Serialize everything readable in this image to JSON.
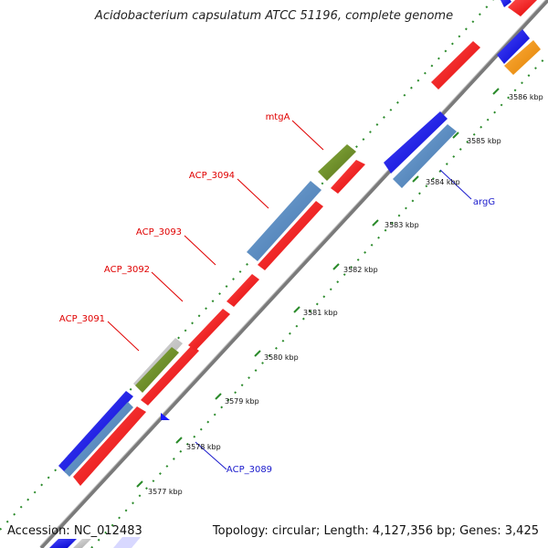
{
  "title": "Acidobacterium capsulatum ATCC 51196, complete genome",
  "footer": {
    "accession": "Accession: NC_012483",
    "summary": "Topology: circular; Length: 4,127,356 bp; Genes: 3,425"
  },
  "ticks": [
    "3577 kbp",
    "3578 kbp",
    "3579 kbp",
    "3580 kbp",
    "3581 kbp",
    "3582 kbp",
    "3583 kbp",
    "3584 kbp",
    "3585 kbp",
    "3586 kbp"
  ],
  "gene_labels": [
    {
      "name": "mtgA",
      "color": "#e00000"
    },
    {
      "name": "ACP_3094",
      "color": "#e00000"
    },
    {
      "name": "ACP_3093",
      "color": "#e00000"
    },
    {
      "name": "ACP_3092",
      "color": "#e00000"
    },
    {
      "name": "ACP_3091",
      "color": "#e00000"
    },
    {
      "name": "argG",
      "color": "#1a1acc"
    },
    {
      "name": "ACP_3089",
      "color": "#1a1acc"
    }
  ],
  "colors": {
    "cds_red": "#ff1a1a",
    "cds_blue": "#1a1aff",
    "cds_steelblue": "#5b8fc9",
    "cds_green": "#6b8e23",
    "cds_grey": "#c8c8c8",
    "cds_orange": "#ff9900",
    "tick_green": "#2a8a2a",
    "backbone": "#888888"
  }
}
